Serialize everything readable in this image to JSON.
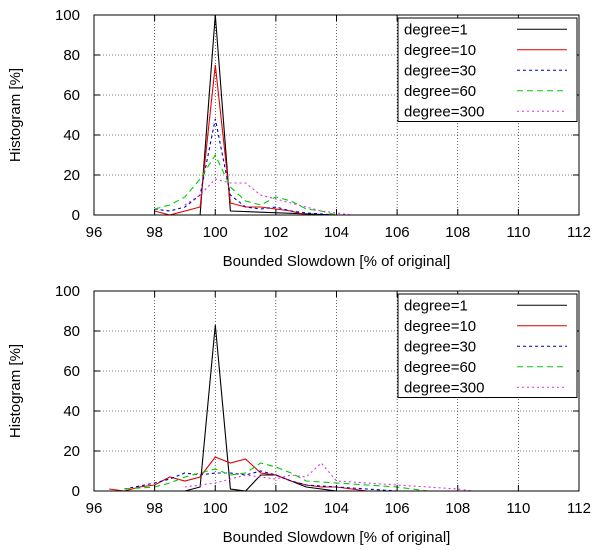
{
  "chart_data": [
    {
      "type": "line",
      "title": "",
      "xlabel": "Bounded Slowdown [% of original]",
      "ylabel": "Histogram [%]",
      "xlim": [
        96,
        112
      ],
      "ylim": [
        0,
        100
      ],
      "xticks": [
        "96",
        "98",
        "100",
        "102",
        "104",
        "106",
        "108",
        "110",
        "112"
      ],
      "yticks": [
        "0",
        "20",
        "40",
        "60",
        "80",
        "100"
      ],
      "grid": true,
      "legend_position": "top-right",
      "series": [
        {
          "name": "degree=1",
          "color": "#000000",
          "dash": "",
          "x": [
            96.5,
            99.5,
            100,
            100.5,
            104
          ],
          "y": [
            0,
            0,
            100,
            2,
            0
          ]
        },
        {
          "name": "degree=10",
          "color": "#e00000",
          "dash": "",
          "x": [
            98,
            98.5,
            99.5,
            100,
            100.5,
            101,
            101.5,
            102,
            102.5,
            103
          ],
          "y": [
            2,
            0,
            4,
            75,
            6,
            4,
            4,
            3,
            2,
            0
          ]
        },
        {
          "name": "degree=30",
          "color": "#0000c0",
          "dash": "3,3",
          "x": [
            98,
            98.5,
            99,
            99.5,
            100,
            100.5,
            101,
            101.5,
            102,
            102.5,
            103,
            104
          ],
          "y": [
            3,
            2,
            4,
            10,
            48,
            10,
            4,
            3,
            4,
            2,
            1,
            0
          ]
        },
        {
          "name": "degree=60",
          "color": "#00cc00",
          "dash": "6,4",
          "x": [
            98,
            98.5,
            99,
            99.5,
            100,
            100.5,
            101,
            101.5,
            102,
            102.5,
            103,
            103.5,
            104
          ],
          "y": [
            3,
            5,
            9,
            18,
            30,
            14,
            7,
            5,
            9,
            7,
            3,
            2,
            0
          ]
        },
        {
          "name": "degree=300",
          "color": "#dd33dd",
          "dash": "2,3",
          "x": [
            99,
            99.5,
            100,
            100.5,
            101,
            101.5,
            102,
            102.5,
            103,
            103.5,
            104,
            104.5
          ],
          "y": [
            5,
            10,
            18,
            16,
            16,
            10,
            8,
            6,
            4,
            2,
            1,
            0
          ]
        }
      ]
    },
    {
      "type": "line",
      "title": "",
      "xlabel": "Bounded Slowdown [% of original]",
      "ylabel": "Histogram [%]",
      "xlim": [
        96,
        112
      ],
      "ylim": [
        0,
        100
      ],
      "xticks": [
        "96",
        "98",
        "100",
        "102",
        "104",
        "106",
        "108",
        "110",
        "112"
      ],
      "yticks": [
        "0",
        "20",
        "40",
        "60",
        "80",
        "100"
      ],
      "grid": true,
      "legend_position": "top-right",
      "series": [
        {
          "name": "degree=1",
          "color": "#000000",
          "dash": "",
          "x": [
            96.5,
            99,
            99.5,
            100,
            100.5,
            101,
            101.5,
            102,
            103,
            104
          ],
          "y": [
            0,
            0,
            2,
            83,
            1,
            0,
            8,
            8,
            2,
            0
          ]
        },
        {
          "name": "degree=10",
          "color": "#e00000",
          "dash": "",
          "x": [
            96.5,
            97,
            97.5,
            98,
            98.5,
            99,
            99.5,
            100,
            100.5,
            101,
            101.5,
            102,
            102.5,
            103,
            103.5,
            104,
            104.5,
            105
          ],
          "y": [
            1,
            0,
            2,
            3,
            7,
            5,
            7,
            17,
            14,
            16,
            9,
            8,
            5,
            3,
            2,
            2,
            1,
            0
          ]
        },
        {
          "name": "degree=30",
          "color": "#0000c0",
          "dash": "3,3",
          "x": [
            97,
            98,
            98.5,
            99,
            99.5,
            100,
            100.5,
            101,
            101.5,
            102,
            102.5,
            103,
            104,
            105,
            106
          ],
          "y": [
            1,
            4,
            6,
            9,
            8,
            9,
            9,
            8,
            10,
            8,
            5,
            3,
            2,
            1,
            0
          ]
        },
        {
          "name": "degree=60",
          "color": "#00cc00",
          "dash": "6,4",
          "x": [
            97,
            98,
            98.5,
            99,
            99.5,
            100,
            100.5,
            101,
            101.5,
            102,
            102.5,
            103,
            104,
            105,
            106,
            107
          ],
          "y": [
            1,
            2,
            4,
            7,
            9,
            11,
            8,
            9,
            14,
            12,
            9,
            5,
            4,
            3,
            2,
            0
          ]
        },
        {
          "name": "degree=300",
          "color": "#dd33dd",
          "dash": "2,3",
          "x": [
            99,
            99.5,
            100,
            100.5,
            101,
            101.5,
            102,
            102.5,
            103,
            103.5,
            104,
            105,
            106,
            107,
            108,
            108.5
          ],
          "y": [
            2,
            3,
            4,
            6,
            8,
            7,
            6,
            8,
            7,
            14,
            5,
            4,
            3,
            2,
            1,
            0
          ]
        }
      ]
    }
  ]
}
